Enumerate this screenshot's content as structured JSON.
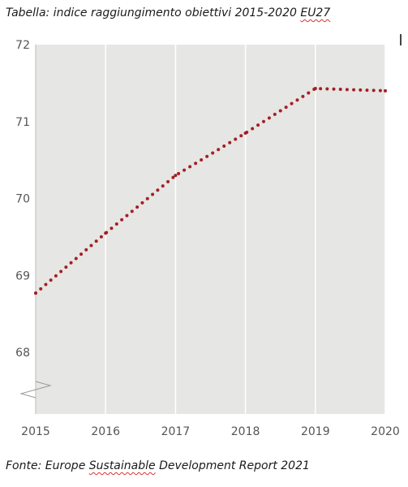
{
  "caption": {
    "title_prefix": "Tabella: indice raggiungimento obiettivi 2015-2020 ",
    "title_underlined": "EU27",
    "source_prefix": "Fonte: Europe ",
    "source_underlined": "Sustainable",
    "source_suffix": " Development Report 2021"
  },
  "chart_data": {
    "type": "line",
    "title": "",
    "xlabel": "",
    "ylabel": "",
    "x": [
      2015,
      2016,
      2017,
      2018,
      2019,
      2020
    ],
    "series": [
      {
        "values": [
          68.77,
          69.55,
          70.3,
          70.85,
          71.43,
          71.4
        ],
        "color": "#a41f22",
        "style": "dotted"
      }
    ],
    "ylim": [
      67.2,
      72
    ],
    "y_ticks": [
      68,
      69,
      70,
      71,
      72
    ],
    "x_ticks": [
      2015,
      2016,
      2017,
      2018,
      2019,
      2020
    ],
    "axis_break": true,
    "grid": "vertical",
    "plot_background": "#e6e6e4",
    "grid_color": "#ffffff"
  }
}
